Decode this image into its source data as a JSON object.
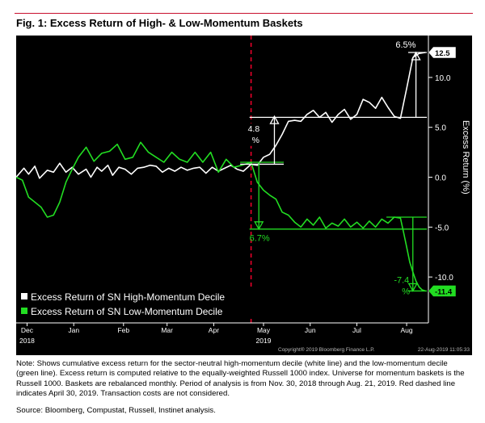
{
  "figure": {
    "title": "Fig. 1: Excess Return of High- & Low-Momentum Baskets",
    "note": "Note: Shows cumulative excess return for the sector-neutral high-momentum decile (white line) and the low-momentum decile (green line). Excess return is computed relative to the equally-weighted Russell 1000 index. Universe for momentum baskets is the Russell 1000. Baskets are rebalanced monthly. Period of analysis is from Nov. 30, 2018 through Aug. 21, 2019. Red dashed line indicates April 30, 2019. Transaction costs are not considered.",
    "source": "Source: Bloomberg, Compustat, Russell, Instinet analysis."
  },
  "colors": {
    "background": "#000000",
    "high": "#ffffff",
    "low": "#22dd22",
    "event_line": "#e8002a",
    "brand_rule": "#c8102e"
  },
  "chart_data": {
    "type": "line",
    "title": "",
    "xlabel": "",
    "ylabel": "Excess Return (%)",
    "xlim": [
      0,
      265
    ],
    "ylim": [
      -14.6,
      14.2
    ],
    "y_ticks": [
      -10.0,
      -5.0,
      0.0,
      5.0,
      10.0
    ],
    "y_tick_labels": [
      "-10.0",
      "-5.0",
      "0.0",
      "5.0",
      "10.0"
    ],
    "x_ticks": [
      {
        "x": 7,
        "label": "Dec",
        "sub": "2018"
      },
      {
        "x": 37,
        "label": "Jan",
        "sub": ""
      },
      {
        "x": 69,
        "label": "Feb",
        "sub": ""
      },
      {
        "x": 97,
        "label": "Mar",
        "sub": ""
      },
      {
        "x": 127,
        "label": "Apr",
        "sub": ""
      },
      {
        "x": 159,
        "label": "May",
        "sub": "2019"
      },
      {
        "x": 189,
        "label": "Jun",
        "sub": ""
      },
      {
        "x": 219,
        "label": "Jul",
        "sub": ""
      },
      {
        "x": 251,
        "label": "Aug",
        "sub": ""
      }
    ],
    "grid": false,
    "legend_position": "bottom-left",
    "event_line": {
      "x": 151,
      "label": "April 30, 2019"
    },
    "series": [
      {
        "name": "Excess Return of SN High-Momentum Decile",
        "color": "#ffffff",
        "x": [
          0,
          5,
          8,
          12,
          15,
          20,
          24,
          28,
          32,
          36,
          40,
          45,
          48,
          52,
          55,
          59,
          62,
          66,
          70,
          74,
          78,
          82,
          86,
          90,
          94,
          98,
          102,
          106,
          110,
          114,
          118,
          122,
          126,
          130,
          134,
          138,
          142,
          146,
          151,
          155,
          159,
          163,
          167,
          171,
          175,
          179,
          183,
          187,
          191,
          195,
          199,
          203,
          207,
          211,
          215,
          219,
          223,
          227,
          231,
          235,
          239,
          243,
          247,
          251,
          255,
          259,
          263
        ],
        "y": [
          0.0,
          0.9,
          0.3,
          1.1,
          -0.1,
          0.7,
          0.5,
          1.4,
          0.5,
          1.0,
          0.3,
          0.8,
          0.0,
          1.0,
          0.6,
          1.2,
          0.2,
          1.0,
          0.8,
          0.3,
          0.9,
          1.0,
          1.2,
          1.1,
          0.5,
          0.9,
          0.6,
          1.0,
          0.7,
          0.9,
          1.0,
          0.4,
          1.0,
          0.6,
          0.9,
          1.2,
          0.8,
          0.6,
          1.3,
          1.2,
          2.0,
          2.3,
          3.2,
          4.3,
          5.6,
          5.7,
          5.6,
          6.3,
          6.7,
          6.0,
          6.5,
          5.5,
          6.3,
          6.8,
          5.8,
          6.3,
          7.8,
          7.5,
          6.9,
          8.0,
          7.0,
          6.1,
          5.9,
          8.9,
          12.0,
          12.4,
          12.5
        ]
      },
      {
        "name": "Excess Return of SN Low-Momentum Decile",
        "color": "#22dd22",
        "x": [
          0,
          4,
          8,
          12,
          16,
          20,
          24,
          28,
          32,
          36,
          40,
          45,
          50,
          55,
          60,
          65,
          70,
          75,
          80,
          85,
          90,
          95,
          100,
          105,
          110,
          115,
          120,
          125,
          130,
          135,
          140,
          145,
          151,
          155,
          159,
          163,
          167,
          171,
          175,
          179,
          183,
          187,
          191,
          195,
          199,
          203,
          207,
          211,
          215,
          219,
          223,
          227,
          231,
          235,
          239,
          243,
          247,
          249,
          251,
          253,
          255,
          257,
          259,
          261,
          263
        ],
        "y": [
          0.0,
          -0.3,
          -2.0,
          -2.5,
          -3.0,
          -4.0,
          -3.8,
          -2.5,
          -0.5,
          0.8,
          2.0,
          3.0,
          1.6,
          2.4,
          2.6,
          3.3,
          1.8,
          2.0,
          3.5,
          2.5,
          2.0,
          1.5,
          2.5,
          1.8,
          1.5,
          2.5,
          1.5,
          2.5,
          0.5,
          1.8,
          1.0,
          1.2,
          1.5,
          -0.5,
          -1.3,
          -1.8,
          -2.2,
          -3.5,
          -3.8,
          -4.5,
          -5.0,
          -4.2,
          -4.8,
          -4.0,
          -5.1,
          -4.6,
          -4.9,
          -4.2,
          -5.0,
          -4.5,
          -5.1,
          -4.4,
          -5.0,
          -4.2,
          -4.6,
          -4.0,
          -4.1,
          -5.5,
          -7.0,
          -8.5,
          -9.5,
          -10.4,
          -11.0,
          -11.3,
          -11.4
        ]
      }
    ],
    "last_values": {
      "high": "12.5",
      "low": "-11.4"
    },
    "annotations": [
      {
        "id": "high-post",
        "text_top": "4.8",
        "text_bottom": "%",
        "x": 166,
        "y_from": 1.3,
        "y_to": 6.1
      },
      {
        "id": "low-post",
        "text": "6.7%",
        "x": 156,
        "y_from": 1.5,
        "y_to": -5.2
      },
      {
        "id": "high-aug",
        "text": "6.5%",
        "x": 257,
        "y_from": 6.0,
        "y_to": 12.5
      },
      {
        "id": "low-aug",
        "text_top": "-7.4",
        "text_bottom": "%",
        "x": 255,
        "y_from": -4.0,
        "y_to": -11.4
      }
    ]
  },
  "footer": {
    "copyright": "Copyright® 2019 Bloomberg Finance L.P.",
    "timestamp": "22-Aug-2019 11:05:33"
  }
}
